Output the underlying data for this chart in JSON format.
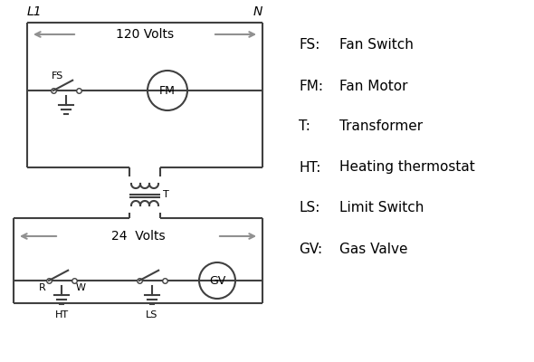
{
  "bg_color": "#ffffff",
  "line_color": "#404040",
  "arrow_color": "#909090",
  "text_color": "#000000",
  "legend_items": [
    [
      "FS:",
      "Fan Switch"
    ],
    [
      "FM:",
      "Fan Motor"
    ],
    [
      "T:",
      "Transformer"
    ],
    [
      "HT:",
      "Heating thermostat"
    ],
    [
      "LS:",
      "Limit Switch"
    ],
    [
      "GV:",
      "Gas Valve"
    ]
  ],
  "label_L1": "L1",
  "label_N": "N",
  "label_120": "120 Volts",
  "label_24": "24  Volts",
  "label_T": "T",
  "label_FS": "FS",
  "label_FM": "FM",
  "label_R": "R",
  "label_W": "W",
  "label_HT": "HT",
  "label_LS": "LS",
  "label_GV": "GV"
}
